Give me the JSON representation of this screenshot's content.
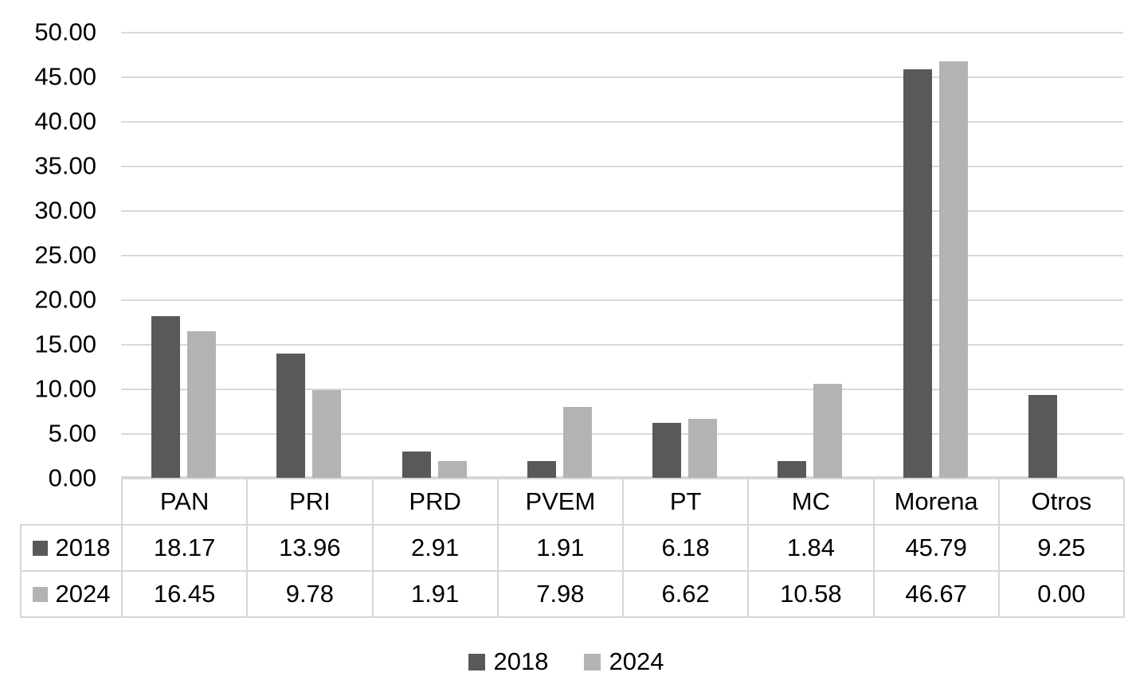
{
  "chart_data": {
    "type": "bar",
    "title": "",
    "xlabel": "",
    "ylabel": "",
    "categories": [
      "PAN",
      "PRI",
      "PRD",
      "PVEM",
      "PT",
      "MC",
      "Morena",
      "Otros"
    ],
    "series": [
      {
        "name": "2018",
        "color": "#595959",
        "values": [
          18.17,
          13.96,
          2.91,
          1.91,
          6.18,
          1.84,
          45.79,
          9.25
        ]
      },
      {
        "name": "2024",
        "color": "#b3b3b3",
        "values": [
          16.45,
          9.78,
          1.91,
          7.98,
          6.62,
          10.58,
          46.67,
          0.0
        ]
      }
    ],
    "ylim": [
      0,
      50
    ],
    "ytick_step": 5,
    "ytick_labels": [
      "50.00",
      "45.00",
      "40.00",
      "35.00",
      "30.00",
      "25.00",
      "20.00",
      "15.00",
      "10.00",
      "5.00",
      "0.00"
    ],
    "value_decimals": 2,
    "grid": true,
    "gridline_color": "#d9d9d9",
    "legend_position": "bottom",
    "show_data_table": true
  }
}
